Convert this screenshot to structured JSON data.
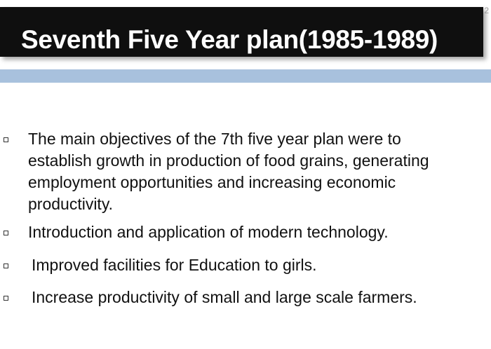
{
  "slide": {
    "title": "Seventh Five Year plan(1985-1989)",
    "page_number": "2",
    "colors": {
      "title_background": "#0f0f0f",
      "title_text": "#ffffff",
      "accent_band": "#a8c1dd",
      "body_text": "#111111"
    }
  },
  "bullets": [
    {
      "text": "The main objectives of the 7th five year plan were to establish growth in production of food grains, generating employment opportunities and increasing economic productivity."
    },
    {
      "text": "Introduction and application of modern technology."
    },
    {
      "text": "Improved facilities for Education to girls."
    },
    {
      "text": "Increase productivity of small and large scale farmers."
    }
  ]
}
